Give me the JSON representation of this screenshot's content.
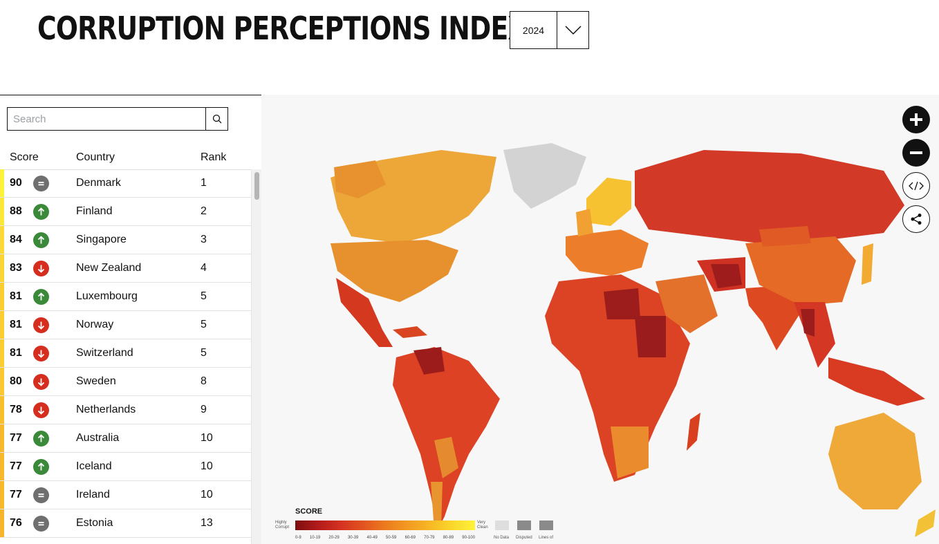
{
  "header": {
    "title": "CORRUPTION PERCEPTIONS INDEX",
    "year": "2024"
  },
  "search": {
    "placeholder": "Search"
  },
  "table": {
    "headers": {
      "score": "Score",
      "country": "Country",
      "rank": "Rank"
    },
    "rows": [
      {
        "score": "90",
        "trend": "same",
        "country": "Denmark",
        "rank": "1",
        "color": "#fdf13a"
      },
      {
        "score": "88",
        "trend": "up",
        "country": "Finland",
        "rank": "2",
        "color": "#fde63a"
      },
      {
        "score": "84",
        "trend": "up",
        "country": "Singapore",
        "rank": "3",
        "color": "#fcd936"
      },
      {
        "score": "83",
        "trend": "down",
        "country": "New Zealand",
        "rank": "4",
        "color": "#fcd535"
      },
      {
        "score": "81",
        "trend": "up",
        "country": "Luxembourg",
        "rank": "5",
        "color": "#fbcd33"
      },
      {
        "score": "81",
        "trend": "down",
        "country": "Norway",
        "rank": "5",
        "color": "#fbcd33"
      },
      {
        "score": "81",
        "trend": "down",
        "country": "Switzerland",
        "rank": "5",
        "color": "#fbcd33"
      },
      {
        "score": "80",
        "trend": "down",
        "country": "Sweden",
        "rank": "8",
        "color": "#fac832"
      },
      {
        "score": "78",
        "trend": "down",
        "country": "Netherlands",
        "rank": "9",
        "color": "#f8be2e"
      },
      {
        "score": "77",
        "trend": "up",
        "country": "Australia",
        "rank": "10",
        "color": "#f7b82d"
      },
      {
        "score": "77",
        "trend": "up",
        "country": "Iceland",
        "rank": "10",
        "color": "#f7b82d"
      },
      {
        "score": "77",
        "trend": "same",
        "country": "Ireland",
        "rank": "10",
        "color": "#f7b82d"
      },
      {
        "score": "76",
        "trend": "same",
        "country": "Estonia",
        "rank": "13",
        "color": "#f6b42c"
      }
    ]
  },
  "trend_colors": {
    "up": "#3a8a3a",
    "down": "#d62e1e",
    "same": "#6f6f6f"
  },
  "map_controls": [
    "zoom-in",
    "zoom-out",
    "embed",
    "share"
  ],
  "legend": {
    "title": "SCORE",
    "low_label": "Highly Corrupt",
    "high_label": "Very Clean",
    "ticks": [
      "0-9",
      "10-19",
      "20-29",
      "30-39",
      "40-49",
      "50-59",
      "60-69",
      "70-79",
      "80-89",
      "90-100"
    ],
    "extra": [
      "No Data",
      "Disputed",
      "Lines of"
    ]
  }
}
